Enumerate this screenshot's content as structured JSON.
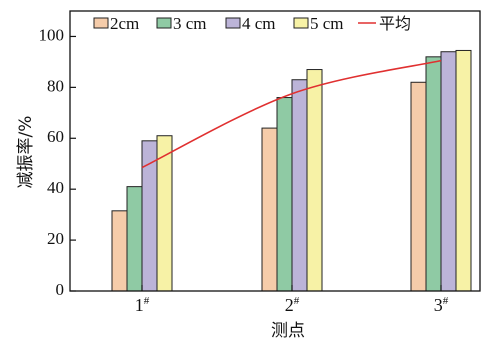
{
  "chart_data": {
    "type": "bar",
    "title": "",
    "xlabel": "测点",
    "ylabel": "减振率/%",
    "ylim": [
      0,
      110
    ],
    "y_ticks": [
      0,
      20,
      40,
      60,
      80,
      100
    ],
    "categories": [
      "1#",
      "2#",
      "3#"
    ],
    "series": [
      {
        "name": "2cm",
        "values": [
          31.5,
          64,
          82
        ],
        "color": "#f5ccaa"
      },
      {
        "name": "3 cm",
        "values": [
          41,
          76,
          92
        ],
        "color": "#8fcaa4"
      },
      {
        "name": "4 cm",
        "values": [
          59,
          83,
          94
        ],
        "color": "#bcb4d8"
      },
      {
        "name": "5 cm",
        "values": [
          61,
          87,
          94.5
        ],
        "color": "#f7f2a6"
      }
    ],
    "line": {
      "name": "平均",
      "color": "#e03030",
      "x": [
        "1#",
        "2#",
        "3#"
      ],
      "values": [
        48.5,
        77.5,
        90.5
      ]
    },
    "legend_position": "top-left",
    "grid": false
  }
}
